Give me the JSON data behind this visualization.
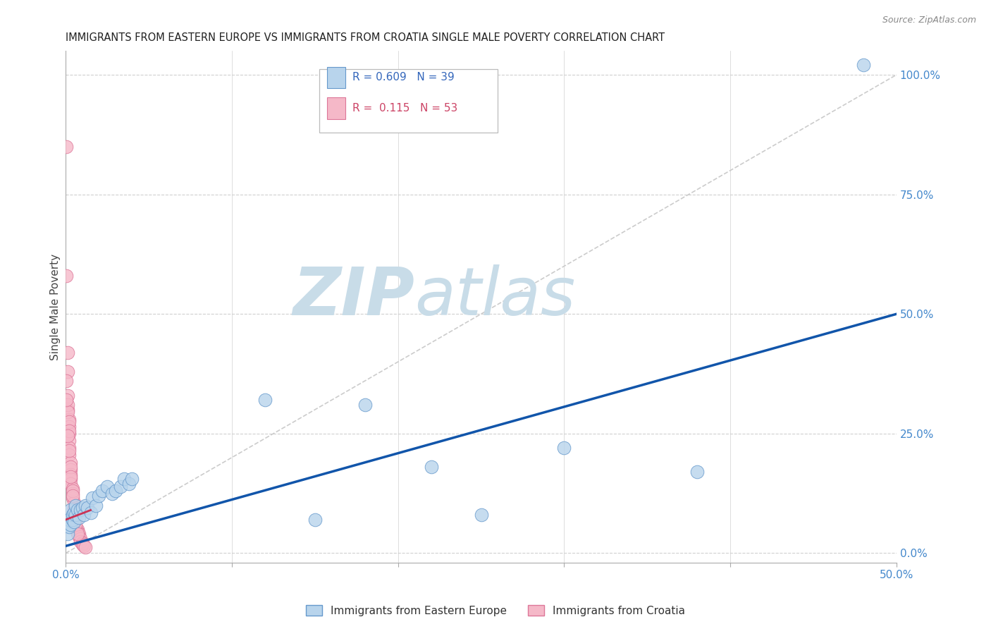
{
  "title": "IMMIGRANTS FROM EASTERN EUROPE VS IMMIGRANTS FROM CROATIA SINGLE MALE POVERTY CORRELATION CHART",
  "source": "Source: ZipAtlas.com",
  "ylabel_left": "Single Male Poverty",
  "series1_label": "Immigrants from Eastern Europe",
  "series1_color": "#b8d4ec",
  "series1_edge_color": "#6699cc",
  "series2_label": "Immigrants from Croatia",
  "series2_color": "#f5b8c8",
  "series2_edge_color": "#dd7799",
  "r1": 0.609,
  "n1": 39,
  "r2": 0.115,
  "n2": 53,
  "legend_r1_color": "#3366bb",
  "legend_r2_color": "#cc4466",
  "regression1_color": "#1155aa",
  "regression2_color": "#cc3355",
  "regression1_y0": 0.015,
  "regression1_y1": 0.5,
  "regression2_y0": 0.08,
  "regression2_y1": 0.08,
  "diagonal_color": "#cccccc",
  "xlim": [
    0,
    0.5
  ],
  "ylim": [
    -0.02,
    1.05
  ],
  "xticks": [
    0.0,
    0.1,
    0.2,
    0.3,
    0.4,
    0.5
  ],
  "yticks_right": [
    0.0,
    0.25,
    0.5,
    0.75,
    1.0
  ],
  "ytick_labels_right": [
    "0.0%",
    "25.0%",
    "50.0%",
    "75.0%",
    "100.0%"
  ],
  "blue_dots": [
    [
      0.001,
      0.06
    ],
    [
      0.001,
      0.04
    ],
    [
      0.002,
      0.055
    ],
    [
      0.002,
      0.07
    ],
    [
      0.003,
      0.06
    ],
    [
      0.003,
      0.09
    ],
    [
      0.004,
      0.07
    ],
    [
      0.004,
      0.08
    ],
    [
      0.005,
      0.085
    ],
    [
      0.005,
      0.065
    ],
    [
      0.006,
      0.08
    ],
    [
      0.006,
      0.1
    ],
    [
      0.007,
      0.09
    ],
    [
      0.008,
      0.075
    ],
    [
      0.009,
      0.09
    ],
    [
      0.01,
      0.095
    ],
    [
      0.011,
      0.08
    ],
    [
      0.012,
      0.1
    ],
    [
      0.013,
      0.095
    ],
    [
      0.015,
      0.085
    ],
    [
      0.016,
      0.115
    ],
    [
      0.018,
      0.1
    ],
    [
      0.02,
      0.12
    ],
    [
      0.022,
      0.13
    ],
    [
      0.025,
      0.14
    ],
    [
      0.028,
      0.125
    ],
    [
      0.03,
      0.13
    ],
    [
      0.033,
      0.14
    ],
    [
      0.035,
      0.155
    ],
    [
      0.038,
      0.145
    ],
    [
      0.04,
      0.155
    ],
    [
      0.12,
      0.32
    ],
    [
      0.15,
      0.07
    ],
    [
      0.18,
      0.31
    ],
    [
      0.22,
      0.18
    ],
    [
      0.25,
      0.08
    ],
    [
      0.3,
      0.22
    ],
    [
      0.38,
      0.17
    ],
    [
      0.48,
      1.02
    ]
  ],
  "pink_dots": [
    [
      0.0005,
      0.85
    ],
    [
      0.0005,
      0.58
    ],
    [
      0.001,
      0.42
    ],
    [
      0.001,
      0.38
    ],
    [
      0.001,
      0.33
    ],
    [
      0.001,
      0.3
    ],
    [
      0.002,
      0.28
    ],
    [
      0.002,
      0.265
    ],
    [
      0.002,
      0.25
    ],
    [
      0.002,
      0.235
    ],
    [
      0.002,
      0.22
    ],
    [
      0.002,
      0.205
    ],
    [
      0.003,
      0.19
    ],
    [
      0.003,
      0.175
    ],
    [
      0.003,
      0.165
    ],
    [
      0.003,
      0.155
    ],
    [
      0.003,
      0.145
    ],
    [
      0.004,
      0.135
    ],
    [
      0.004,
      0.125
    ],
    [
      0.004,
      0.115
    ],
    [
      0.005,
      0.105
    ],
    [
      0.005,
      0.095
    ],
    [
      0.005,
      0.085
    ],
    [
      0.005,
      0.075
    ],
    [
      0.006,
      0.065
    ],
    [
      0.006,
      0.055
    ],
    [
      0.007,
      0.05
    ],
    [
      0.007,
      0.045
    ],
    [
      0.008,
      0.04
    ],
    [
      0.008,
      0.035
    ],
    [
      0.009,
      0.03
    ],
    [
      0.009,
      0.025
    ],
    [
      0.01,
      0.022
    ],
    [
      0.01,
      0.018
    ],
    [
      0.011,
      0.015
    ],
    [
      0.012,
      0.012
    ],
    [
      0.001,
      0.31
    ],
    [
      0.001,
      0.295
    ],
    [
      0.002,
      0.275
    ],
    [
      0.002,
      0.255
    ],
    [
      0.003,
      0.18
    ],
    [
      0.004,
      0.13
    ],
    [
      0.005,
      0.09
    ],
    [
      0.006,
      0.07
    ],
    [
      0.0005,
      0.36
    ],
    [
      0.0005,
      0.32
    ],
    [
      0.001,
      0.245
    ],
    [
      0.002,
      0.215
    ],
    [
      0.003,
      0.16
    ],
    [
      0.004,
      0.12
    ],
    [
      0.005,
      0.08
    ],
    [
      0.006,
      0.06
    ],
    [
      0.007,
      0.04
    ]
  ],
  "watermark_zip_color": "#c8dce8",
  "watermark_atlas_color": "#c8dce8",
  "background_color": "#ffffff",
  "grid_color": "#d0d0d0",
  "tick_color": "#4488cc"
}
